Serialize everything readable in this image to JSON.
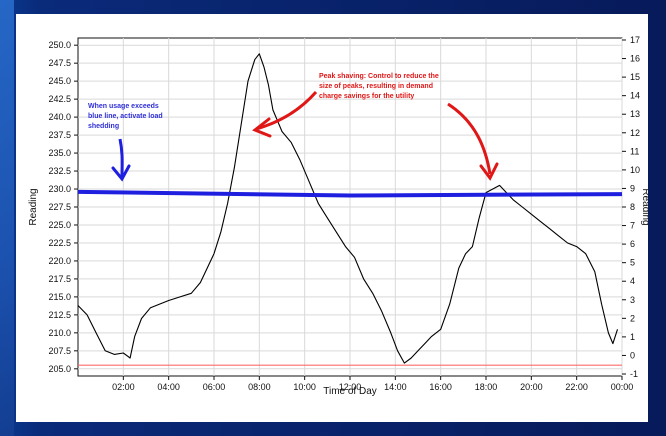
{
  "chart_data": {
    "type": "line",
    "title": "",
    "xlabel": "Time of Day",
    "ylabel_left": "Reading",
    "ylabel_right": "Reading",
    "x_ticks": [
      "02:00",
      "04:00",
      "06:00",
      "08:00",
      "10:00",
      "12:00",
      "14:00",
      "16:00",
      "18:00",
      "20:00",
      "22:00",
      "00:00"
    ],
    "y_left_ticks": [
      "250.0",
      "247.5",
      "245.0",
      "242.5",
      "240.0",
      "237.5",
      "235.0",
      "232.5",
      "230.0",
      "227.5",
      "225.0",
      "222.5",
      "220.0",
      "217.5",
      "215.0",
      "212.5",
      "210.0",
      "207.5",
      "205.0"
    ],
    "y_right_ticks": [
      "17",
      "16",
      "15",
      "14",
      "13",
      "12",
      "11",
      "10",
      "9",
      "8",
      "7",
      "6",
      "5",
      "4",
      "3",
      "2",
      "1",
      "0",
      "-1"
    ],
    "x_range_hours": [
      0,
      24
    ],
    "ylim_left": [
      204,
      251
    ],
    "grid": true,
    "series": [
      {
        "color": "#000000",
        "points": [
          [
            0.0,
            213.8
          ],
          [
            0.4,
            212.5
          ],
          [
            0.8,
            210.0
          ],
          [
            1.2,
            207.5
          ],
          [
            1.6,
            207.0
          ],
          [
            2.0,
            207.2
          ],
          [
            2.3,
            206.5
          ],
          [
            2.5,
            209.5
          ],
          [
            2.8,
            212.0
          ],
          [
            3.2,
            213.5
          ],
          [
            3.6,
            214.0
          ],
          [
            4.0,
            214.5
          ],
          [
            4.5,
            215.0
          ],
          [
            5.0,
            215.5
          ],
          [
            5.4,
            217.0
          ],
          [
            5.7,
            219.0
          ],
          [
            6.0,
            221.0
          ],
          [
            6.3,
            224.0
          ],
          [
            6.6,
            228.0
          ],
          [
            6.9,
            233.0
          ],
          [
            7.2,
            239.0
          ],
          [
            7.5,
            245.0
          ],
          [
            7.8,
            248.0
          ],
          [
            8.0,
            248.8
          ],
          [
            8.2,
            247.0
          ],
          [
            8.4,
            244.5
          ],
          [
            8.6,
            241.0
          ],
          [
            9.0,
            238.0
          ],
          [
            9.4,
            236.5
          ],
          [
            9.8,
            234.0
          ],
          [
            10.2,
            231.0
          ],
          [
            10.6,
            228.0
          ],
          [
            11.0,
            226.0
          ],
          [
            11.4,
            224.0
          ],
          [
            11.8,
            222.0
          ],
          [
            12.2,
            220.5
          ],
          [
            12.6,
            217.5
          ],
          [
            13.0,
            215.5
          ],
          [
            13.4,
            213.0
          ],
          [
            13.8,
            210.0
          ],
          [
            14.1,
            207.5
          ],
          [
            14.4,
            205.8
          ],
          [
            14.7,
            206.5
          ],
          [
            15.0,
            207.5
          ],
          [
            15.3,
            208.5
          ],
          [
            15.6,
            209.5
          ],
          [
            16.0,
            210.5
          ],
          [
            16.4,
            214.0
          ],
          [
            16.8,
            219.0
          ],
          [
            17.1,
            221.0
          ],
          [
            17.4,
            222.0
          ],
          [
            17.7,
            226.0
          ],
          [
            18.0,
            229.5
          ],
          [
            18.3,
            230.0
          ],
          [
            18.6,
            230.5
          ],
          [
            18.9,
            229.5
          ],
          [
            19.2,
            228.5
          ],
          [
            19.6,
            227.5
          ],
          [
            20.0,
            226.5
          ],
          [
            20.4,
            225.5
          ],
          [
            20.8,
            224.5
          ],
          [
            21.2,
            223.5
          ],
          [
            21.6,
            222.5
          ],
          [
            22.0,
            222.0
          ],
          [
            22.4,
            221.0
          ],
          [
            22.8,
            218.5
          ],
          [
            23.1,
            214.0
          ],
          [
            23.4,
            210.0
          ],
          [
            23.6,
            208.5
          ],
          [
            23.8,
            210.5
          ]
        ]
      },
      {
        "color": "#1f1fe0",
        "points": [
          [
            0.0,
            229.6
          ],
          [
            12.0,
            229.1
          ],
          [
            24.0,
            229.3
          ]
        ]
      },
      {
        "color": "#ff6b6b",
        "points": [
          [
            0.0,
            205.5
          ],
          [
            24.0,
            205.5
          ]
        ]
      }
    ],
    "annotations": [
      {
        "color": "#2f2fd8",
        "lines": [
          "When usage exceeds",
          "blue line, activate load",
          "shedding"
        ]
      },
      {
        "color": "#e01717",
        "lines": [
          "Peak shaving: Control to reduce the",
          "size of peaks, resulting in demand",
          "charge savings for the utility"
        ]
      }
    ]
  }
}
